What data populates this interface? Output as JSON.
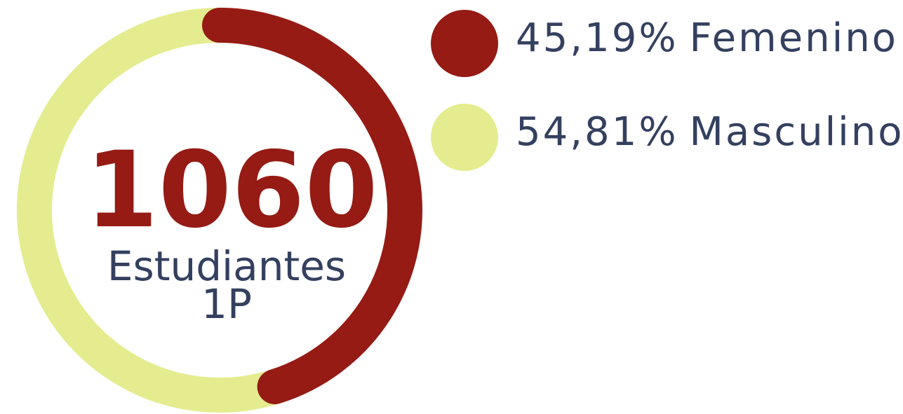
{
  "chart_data": {
    "type": "pie",
    "donut": true,
    "categories": [
      "Femenino",
      "Masculino"
    ],
    "values": [
      45.19,
      54.81
    ],
    "value_labels": [
      "45,19%",
      "54,81%"
    ],
    "colors": [
      "#951b14",
      "#e4ec8f"
    ],
    "center_value": 1060,
    "center_lines": [
      "Estudiantes",
      "1P"
    ]
  }
}
